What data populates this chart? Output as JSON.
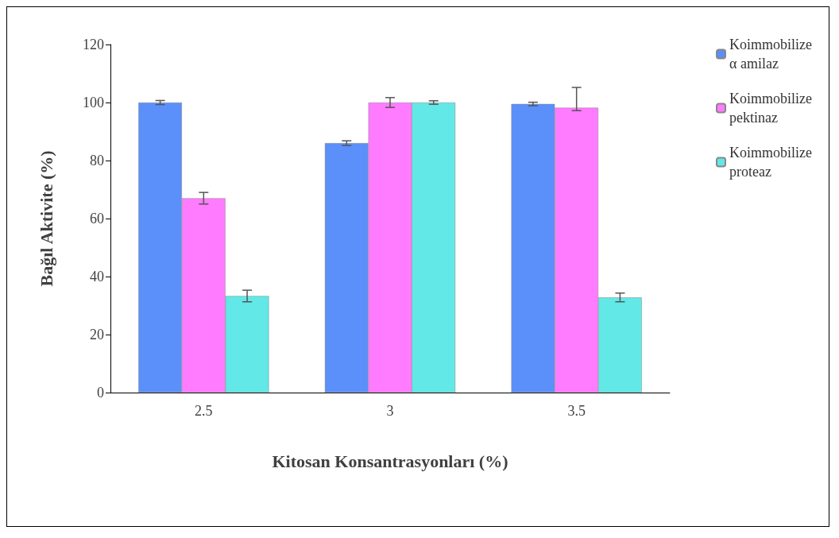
{
  "chart_data": {
    "type": "bar",
    "xlabel": "Kitosan Konsantrasyonları (%)",
    "ylabel": "Bağıl Aktivite (%)",
    "categories": [
      "2.5",
      "3",
      "3.5"
    ],
    "series": [
      {
        "name": "Koimmobilize α amilaz",
        "color": "#5b8ff9",
        "values": [
          100,
          86,
          99.5
        ],
        "errors": [
          0.7,
          0.8,
          0.6
        ]
      },
      {
        "name": "Koimmobilize pektinaz",
        "color": "#ff7bff",
        "values": [
          67,
          100,
          98.2
        ],
        "errors": [
          2,
          1.7,
          [
            97.2,
            105.2
          ]
        ]
      },
      {
        "name": "Koimmobilize proteaz",
        "color": "#62e8e6",
        "values": [
          33.3,
          100,
          32.8
        ],
        "errors": [
          2,
          0.6,
          1.5
        ]
      }
    ],
    "ylim": [
      0,
      120
    ],
    "yticks": [
      0,
      20,
      40,
      60,
      80,
      100,
      120
    ],
    "grid": false,
    "legend": "top right"
  }
}
